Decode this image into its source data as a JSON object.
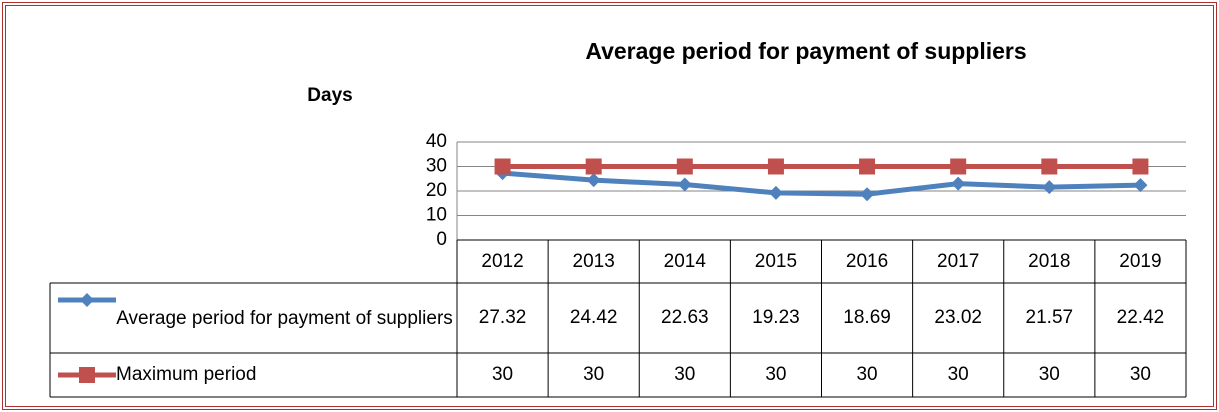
{
  "chart_data": {
    "type": "line",
    "title": "Average period for payment of suppliers",
    "y_label": "Days",
    "categories": [
      "2012",
      "2013",
      "2014",
      "2015",
      "2016",
      "2017",
      "2018",
      "2019"
    ],
    "series": [
      {
        "name": "Average period for payment of suppliers",
        "color": "#4f81bd",
        "marker": "diamond",
        "values": [
          27.32,
          24.42,
          22.63,
          19.23,
          18.69,
          23.02,
          21.57,
          22.42
        ]
      },
      {
        "name": "Maximum period",
        "color": "#c0504d",
        "marker": "square",
        "values": [
          30,
          30,
          30,
          30,
          30,
          30,
          30,
          30
        ]
      }
    ],
    "ylim": [
      0,
      40
    ],
    "yticks": [
      0,
      10,
      20,
      30,
      40
    ],
    "grid": true,
    "data_table": true
  }
}
